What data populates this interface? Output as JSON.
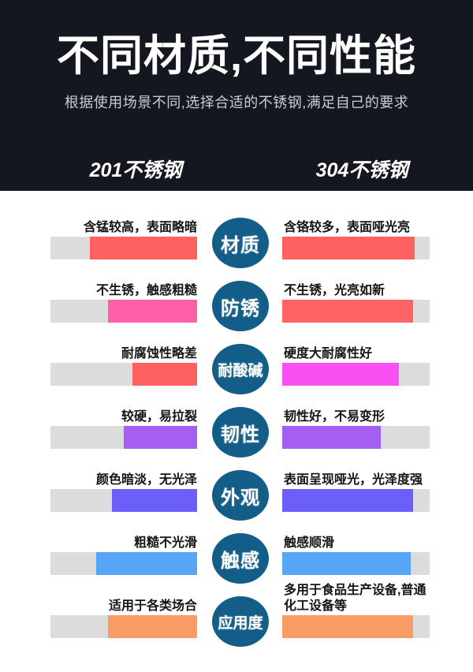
{
  "header": {
    "bg": "#141720",
    "title": "不同材质,不同性能",
    "subtitle": "根据使用场景不同,选择合适的不锈钢,满足自己的要求",
    "column_left": "201不锈钢",
    "column_right": "304不锈钢"
  },
  "colors": {
    "track": "#dcdcdc",
    "circle_badge": "#135e88"
  },
  "rows": [
    {
      "category": "材质",
      "left": {
        "label": "含锰较高，表面略暗",
        "fill_pct": 73,
        "color": "#ff6161"
      },
      "right": {
        "label": "含铬较多，表面哑光亮",
        "fill_pct": 90,
        "color": "#ff6161"
      }
    },
    {
      "category": "防锈",
      "left": {
        "label": "不生锈，触感粗糙",
        "fill_pct": 61,
        "color": "#ff5fa8"
      },
      "right": {
        "label": "不生锈，光亮如新",
        "fill_pct": 89,
        "color": "#ff6363"
      }
    },
    {
      "category": "耐酸碱",
      "left": {
        "label": "耐腐蚀性略差",
        "fill_pct": 44,
        "color": "#ff6161"
      },
      "right": {
        "label": "硬度大耐腐性好",
        "fill_pct": 79,
        "color": "#fa4ff2"
      }
    },
    {
      "category": "韧性",
      "left": {
        "label": "较硬，易拉裂",
        "fill_pct": 50,
        "color": "#a55ef2"
      },
      "right": {
        "label": "韧性好，不易变形",
        "fill_pct": 67,
        "color": "#a55ef2"
      }
    },
    {
      "category": "外观",
      "left": {
        "label": "颜色暗淡，无光泽",
        "fill_pct": 58,
        "color": "#6b5ff8"
      },
      "right": {
        "label": "表面呈现哑光，光泽度强",
        "fill_pct": 89,
        "color": "#6b5ff8"
      }
    },
    {
      "category": "触感",
      "left": {
        "label": "粗糙不光滑",
        "fill_pct": 69,
        "color": "#57a5f6"
      },
      "right": {
        "label": "触感顺滑",
        "fill_pct": 87,
        "color": "#57a5f6"
      }
    },
    {
      "category": "应用度",
      "left": {
        "label": "适用于各类场合",
        "fill_pct": 61,
        "color": "#f89b64"
      },
      "right": {
        "label": "多用于食品生产设备,普通化工设备等",
        "fill_pct": 89,
        "color": "#f89b64"
      }
    }
  ]
}
